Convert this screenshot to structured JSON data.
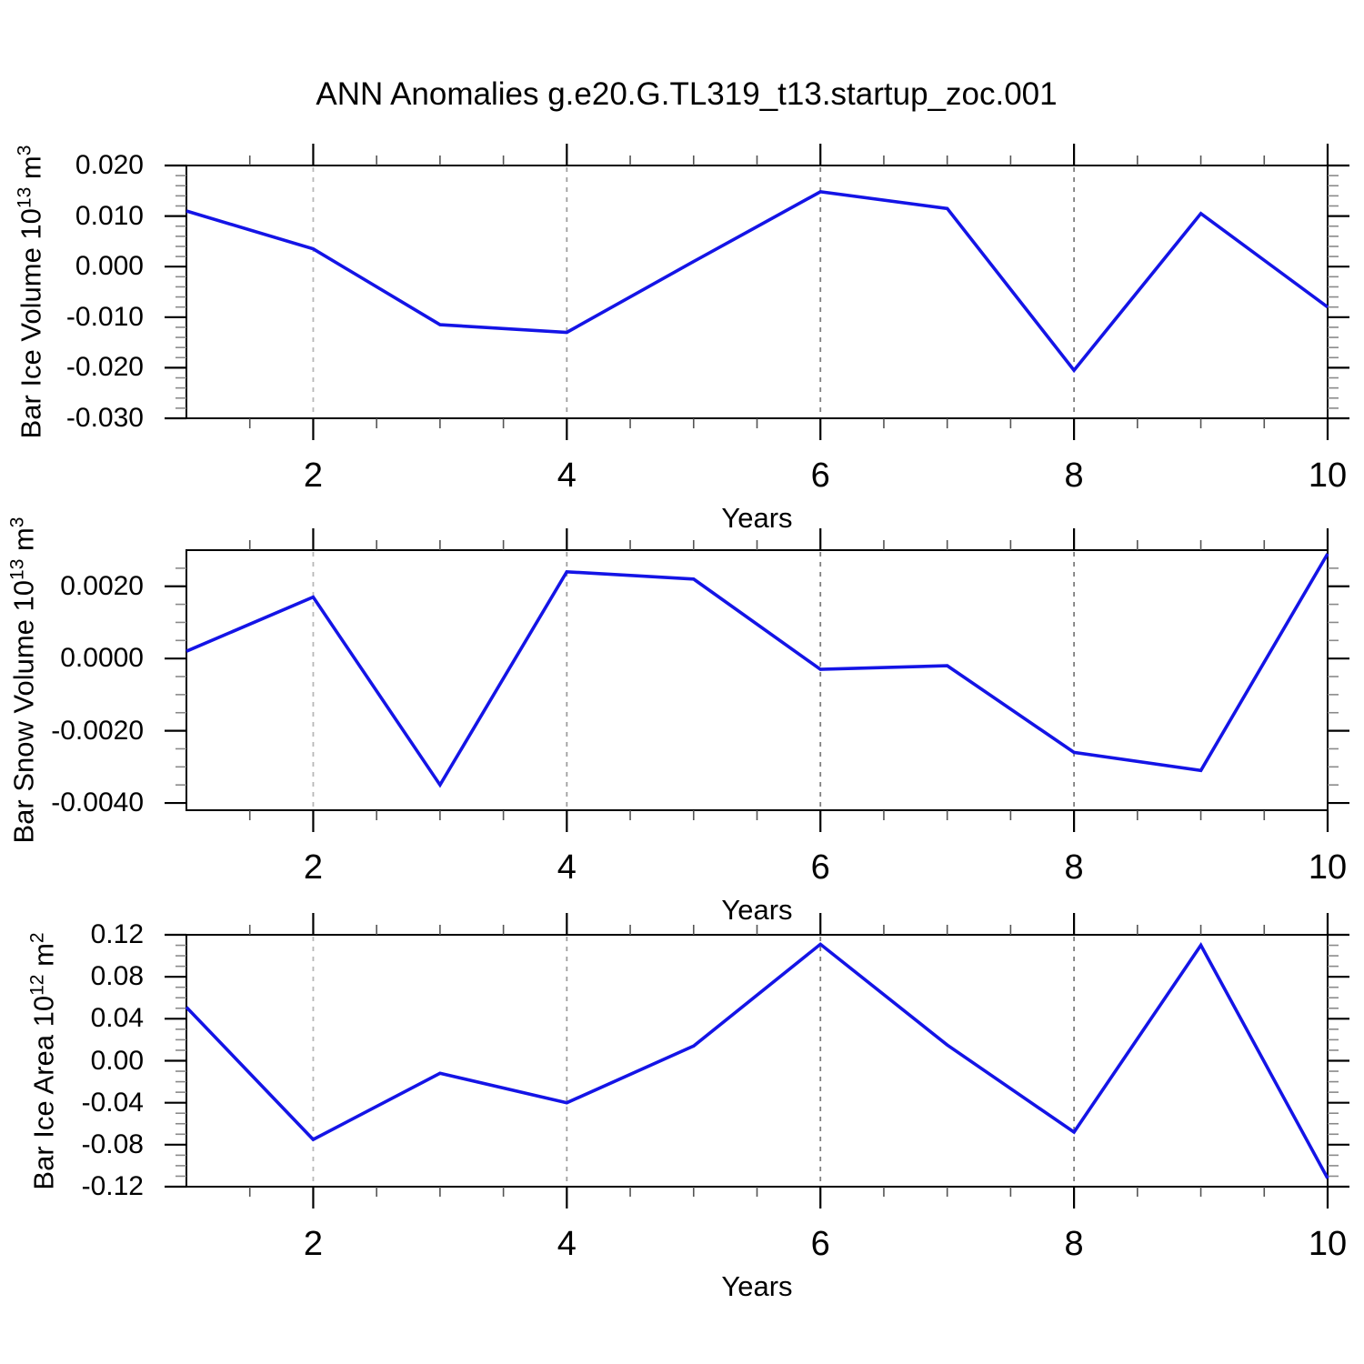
{
  "title": "ANN Anomalies g.e20.G.TL319_t13.startup_zoc.001",
  "accent_color": "#1414e6",
  "chart_data": [
    {
      "type": "line",
      "panel": "ice-volume",
      "ylabel_parts": {
        "prefix": "Bar Ice Volume 10",
        "sup1": "13",
        "mid": " m",
        "sup2": "3"
      },
      "ylabel_text": "Bar Ice Volume 10^13 m^3",
      "xlabel": "Years",
      "x": [
        1,
        2,
        3,
        4,
        5,
        6,
        7,
        8,
        9,
        10
      ],
      "values": [
        0.011,
        0.0035,
        -0.0115,
        -0.013,
        0.001,
        0.0148,
        0.0115,
        -0.0205,
        0.0105,
        -0.008
      ],
      "ylim": [
        -0.03,
        0.02
      ],
      "yticks_major": [
        0.02,
        0.01,
        0.0,
        -0.01,
        -0.02,
        -0.03
      ],
      "ytick_labels": [
        "0.020",
        "0.010",
        "0.000",
        "-0.010",
        "-0.020",
        "-0.030"
      ],
      "y_minor_step": 0.002,
      "xticks_labeled": [
        2,
        4,
        6,
        8,
        10
      ],
      "x_minor_step": 0.5,
      "xlim": [
        1,
        10
      ],
      "grid_x": [
        2,
        4,
        6,
        8
      ],
      "grid_style": "dashed",
      "line_color": "#1414e6"
    },
    {
      "type": "line",
      "panel": "snow-volume",
      "ylabel_parts": {
        "prefix": "Bar Snow Volume 10",
        "sup1": "13",
        "mid": " m",
        "sup2": "3"
      },
      "ylabel_text": "Bar Snow Volume 10^13 m^3",
      "xlabel": "Years",
      "x": [
        1,
        2,
        3,
        4,
        5,
        6,
        7,
        8,
        9,
        10
      ],
      "values": [
        0.0002,
        0.0017,
        -0.0035,
        0.0024,
        0.0022,
        -0.0003,
        -0.0002,
        -0.0026,
        -0.0031,
        0.0029
      ],
      "ylim": [
        -0.0042,
        0.003
      ],
      "yticks_major": [
        0.002,
        0.0,
        -0.002,
        -0.004
      ],
      "ytick_labels": [
        "0.0020",
        "0.0000",
        "-0.0020",
        "-0.0040"
      ],
      "y_minor_step": 0.0005,
      "xticks_labeled": [
        2,
        4,
        6,
        8,
        10
      ],
      "x_minor_step": 0.5,
      "xlim": [
        1,
        10
      ],
      "grid_x": [
        2,
        4,
        6,
        8
      ],
      "grid_style": "dashed",
      "line_color": "#1414e6"
    },
    {
      "type": "line",
      "panel": "ice-area",
      "ylabel_parts": {
        "prefix": "Bar Ice Area 10",
        "sup1": "12",
        "mid": " m",
        "sup2": "2"
      },
      "ylabel_text": "Bar Ice Area 10^12 m^2",
      "xlabel": "Years",
      "x": [
        1,
        2,
        3,
        4,
        5,
        6,
        7,
        8,
        9,
        10
      ],
      "values": [
        0.051,
        -0.075,
        -0.012,
        -0.04,
        0.014,
        0.111,
        0.015,
        -0.068,
        0.11,
        -0.112
      ],
      "ylim": [
        -0.12,
        0.12
      ],
      "yticks_major": [
        0.12,
        0.08,
        0.04,
        0.0,
        -0.04,
        -0.08,
        -0.12
      ],
      "ytick_labels": [
        "0.12",
        "0.08",
        "0.04",
        "0.00",
        "-0.04",
        "-0.08",
        "-0.12"
      ],
      "y_minor_step": 0.01,
      "xticks_labeled": [
        2,
        4,
        6,
        8,
        10
      ],
      "x_minor_step": 0.5,
      "xlim": [
        1,
        10
      ],
      "grid_x": [
        2,
        4,
        6,
        8
      ],
      "grid_style": "dashed",
      "line_color": "#1414e6"
    }
  ]
}
